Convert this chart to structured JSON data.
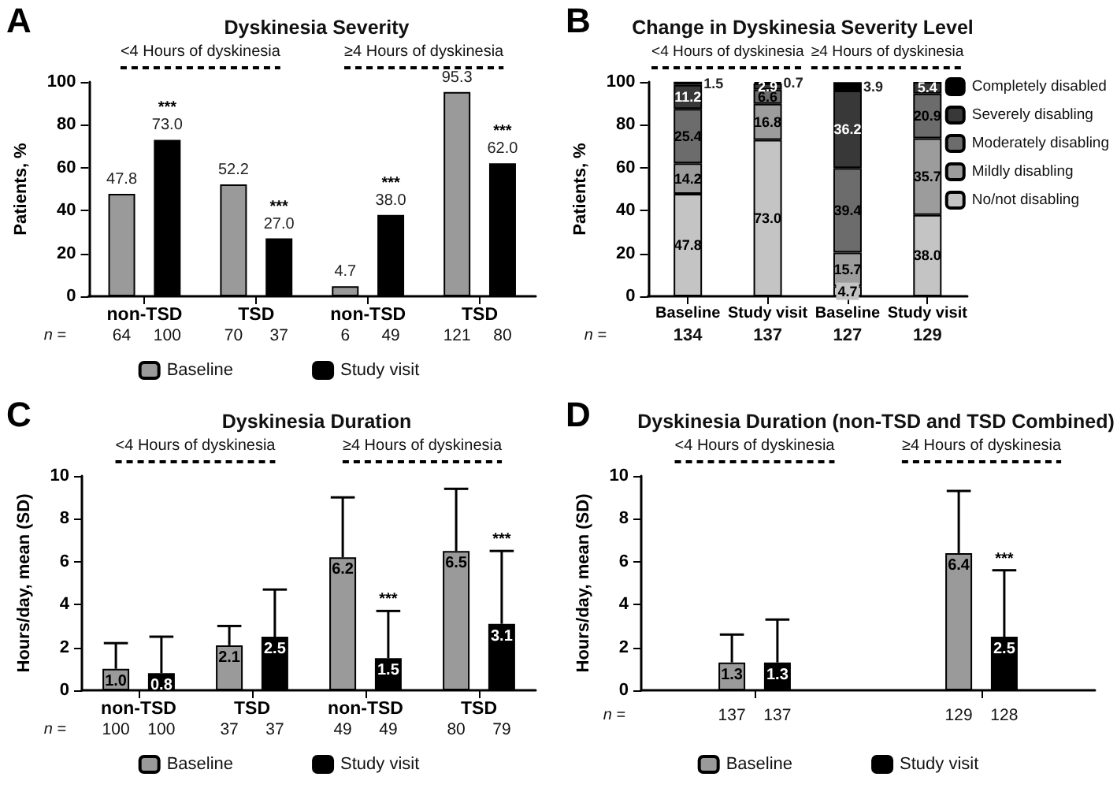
{
  "chart_data": [
    {
      "type": "bar",
      "title": "Dyskinesia Severity",
      "ylabel": "Patients, %",
      "categories": [
        "non-TSD",
        "TSD",
        "non-TSD",
        "TSD"
      ],
      "series": [
        {
          "name": "Baseline",
          "color": "#9a9a9a",
          "values": [
            47.8,
            52.2,
            4.7,
            95.3
          ],
          "value_labels": [
            "47.8",
            "52.2",
            "4.7",
            "95.3"
          ]
        },
        {
          "name": "Study visit",
          "color": "#000000",
          "values": [
            73.0,
            27.0,
            38.0,
            62.0
          ],
          "value_labels": [
            "73.0",
            "27.0",
            "38.0",
            "62.0"
          ]
        }
      ],
      "ylim": [
        0,
        100
      ],
      "yticks": [
        0,
        20,
        40,
        60,
        80,
        100
      ],
      "grid": false,
      "legend": "bottom",
      "annotations": [
        "A",
        "<4 Hours of dyskinesia",
        "≥4 Hours of dyskinesia",
        "n =",
        "64",
        "100",
        "70",
        "37",
        "6",
        "49",
        "121",
        "80",
        "***",
        "***",
        "***",
        "***"
      ]
    },
    {
      "type": "bar",
      "stacked": true,
      "title": "Change in Dyskinesia Severity Level",
      "ylabel": "Patients, %",
      "categories": [
        "Baseline",
        "Study visit",
        "Baseline",
        "Study visit"
      ],
      "series": [
        {
          "name": "No/not disabling",
          "color": "#c4c4c4",
          "values": [
            47.8,
            73.0,
            4.7,
            38.0
          ],
          "value_labels": [
            "47.8",
            "73.0",
            "4.7",
            "38.0"
          ]
        },
        {
          "name": "Mildly disabling",
          "color": "#9c9c9c",
          "values": [
            14.2,
            16.8,
            15.7,
            35.7
          ],
          "value_labels": [
            "14.2",
            "16.8",
            "15.7",
            "35.7"
          ]
        },
        {
          "name": "Moderately disabling",
          "color": "#6c6c6c",
          "values": [
            25.4,
            6.6,
            39.4,
            20.9
          ],
          "value_labels": [
            "25.4",
            "6.6",
            "39.4",
            "20.9"
          ]
        },
        {
          "name": "Severely disabling",
          "color": "#383838",
          "values": [
            11.2,
            2.9,
            36.2,
            5.4
          ],
          "value_labels": [
            "11.2",
            "2.9",
            "36.2",
            "5.4"
          ]
        },
        {
          "name": "Completely disabled",
          "color": "#000000",
          "values": [
            1.5,
            0.7,
            3.9,
            null
          ],
          "value_labels": [
            "1.5",
            "0.7",
            "3.9",
            null
          ]
        }
      ],
      "ylim": [
        0,
        100
      ],
      "yticks": [
        0,
        20,
        40,
        60,
        80,
        100
      ],
      "grid": false,
      "legend": "right",
      "annotations": [
        "B",
        "<4 Hours of dyskinesia",
        "≥4 Hours of dyskinesia",
        "n =",
        "134",
        "137",
        "127",
        "129"
      ]
    },
    {
      "type": "bar",
      "title": "Dyskinesia Duration",
      "ylabel": "Hours/day, mean (SD)",
      "categories": [
        "non-TSD",
        "TSD",
        "non-TSD",
        "TSD"
      ],
      "series": [
        {
          "name": "Baseline",
          "color": "#9a9a9a",
          "values": [
            1.0,
            2.1,
            6.2,
            6.5
          ],
          "value_labels": [
            "1.0",
            "2.1",
            "6.2",
            "6.5"
          ],
          "errors": [
            [
              1.0,
              2.2
            ],
            [
              2.1,
              3.0
            ],
            [
              6.2,
              9.0
            ],
            [
              6.5,
              9.4
            ]
          ]
        },
        {
          "name": "Study visit",
          "color": "#000000",
          "values": [
            0.8,
            2.5,
            1.5,
            3.1
          ],
          "value_labels": [
            "0.8",
            "2.5",
            "1.5",
            "3.1"
          ],
          "errors": [
            [
              0.8,
              2.5
            ],
            [
              2.5,
              4.7
            ],
            [
              1.5,
              3.7
            ],
            [
              3.1,
              6.5
            ]
          ]
        }
      ],
      "ylim": [
        0,
        10
      ],
      "yticks": [
        0,
        2,
        4,
        6,
        8,
        10
      ],
      "grid": false,
      "legend": "bottom",
      "annotations": [
        "C",
        "<4 Hours of dyskinesia",
        "≥4 Hours of dyskinesia",
        "n =",
        "100",
        "100",
        "37",
        "37",
        "49",
        "49",
        "80",
        "79",
        "***",
        "***"
      ]
    },
    {
      "type": "bar",
      "title": "Dyskinesia Duration (non-TSD and TSD Combined)",
      "ylabel": "Hours/day, mean (SD)",
      "categories": [
        null,
        null
      ],
      "series": [
        {
          "name": "Baseline",
          "color": "#9a9a9a",
          "values": [
            1.3,
            6.4
          ],
          "value_labels": [
            "1.3",
            "6.4"
          ],
          "errors": [
            [
              1.3,
              2.6
            ],
            [
              6.4,
              9.3
            ]
          ]
        },
        {
          "name": "Study visit",
          "color": "#000000",
          "values": [
            1.3,
            2.5
          ],
          "value_labels": [
            "1.3",
            "2.5"
          ],
          "errors": [
            [
              1.3,
              3.3
            ],
            [
              2.5,
              5.6
            ]
          ]
        }
      ],
      "ylim": [
        0,
        10
      ],
      "yticks": [
        0,
        2,
        4,
        6,
        8,
        10
      ],
      "grid": false,
      "legend": "bottom",
      "annotations": [
        "D",
        "<4 Hours of dyskinesia",
        "≥4 Hours of dyskinesia",
        "n =",
        "137",
        "137",
        "129",
        "128",
        "***"
      ]
    }
  ]
}
